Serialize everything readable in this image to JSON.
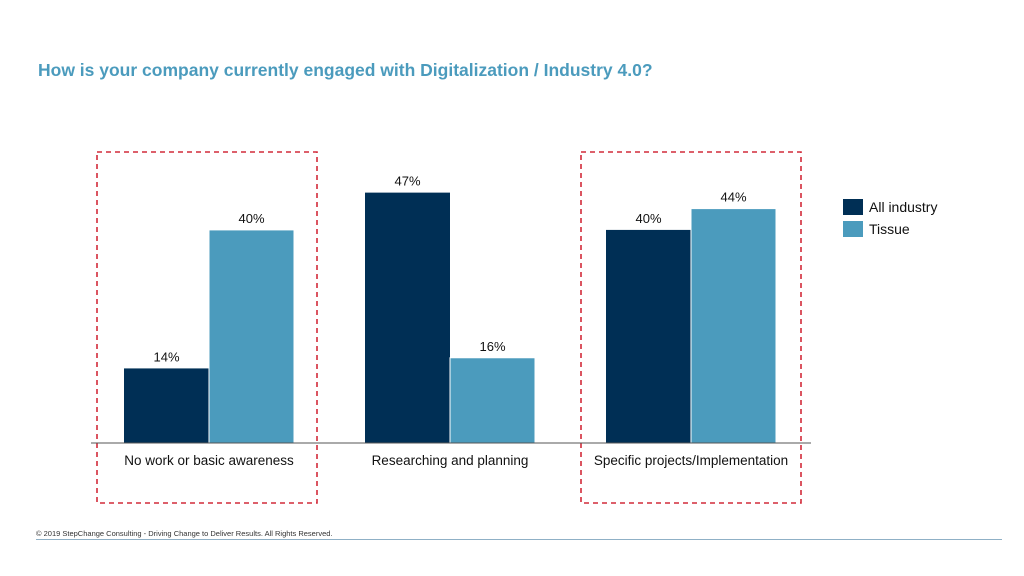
{
  "title": "How is your company currently engaged with Digitalization / Industry 4.0?",
  "footer": "© 2019 StepChange Consulting - Driving Change to Deliver Results. All Rights Reserved.",
  "colors": {
    "all_industry": "#002f55",
    "tissue": "#4b9bbd",
    "highlight_box": "#d22b3a",
    "title": "#4b9bbd"
  },
  "chart_data": {
    "type": "bar",
    "categories": [
      "No work or basic awareness",
      "Researching and planning",
      "Specific projects/Implementation"
    ],
    "series": [
      {
        "name": "All industry",
        "values": [
          14,
          47,
          40
        ],
        "labels": [
          "14%",
          "47%",
          "40%"
        ]
      },
      {
        "name": "Tissue",
        "values": [
          40,
          16,
          44
        ],
        "labels": [
          "40%",
          "16%",
          "44%"
        ]
      }
    ],
    "highlighted_categories": [
      "No work or basic awareness",
      "Specific projects/Implementation"
    ],
    "ylim": [
      0,
      55
    ],
    "grid": false,
    "legend_position": "right",
    "xlabel": "",
    "ylabel": ""
  }
}
